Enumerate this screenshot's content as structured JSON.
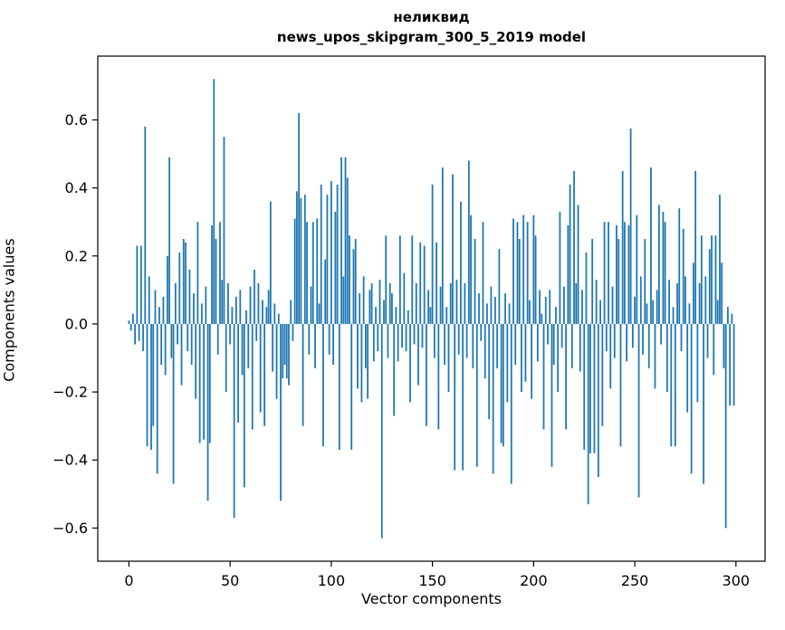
{
  "figure": {
    "title_line1": "неликвид",
    "title_line2": "news_upos_skipgram_300_5_2019 model",
    "xlabel": "Vector components",
    "ylabel": "Components values"
  },
  "chart_data": {
    "type": "bar",
    "title": "неликвид — news_upos_skipgram_300_5_2019 model",
    "xlabel": "Vector components",
    "ylabel": "Components values",
    "bar_color": "#1f77b4",
    "n_components": 300,
    "grid": false,
    "legend": null,
    "xlim": [
      -15.4,
      314.4
    ],
    "ylim": [
      -0.6975,
      0.7875
    ],
    "x_ticks": [
      0,
      50,
      100,
      150,
      200,
      250,
      300
    ],
    "x_tick_labels": [
      "0",
      "50",
      "100",
      "150",
      "200",
      "250",
      "300"
    ],
    "y_ticks": [
      -0.6,
      -0.4,
      -0.2,
      0.0,
      0.2,
      0.4,
      0.6
    ],
    "y_tick_labels": [
      "−0.6",
      "−0.4",
      "−0.2",
      "0.0",
      "0.2",
      "0.4",
      "0.6"
    ],
    "values": [
      0.01,
      -0.02,
      0.03,
      -0.06,
      0.23,
      -0.05,
      0.23,
      -0.08,
      0.58,
      -0.36,
      0.14,
      -0.37,
      -0.3,
      0.1,
      -0.44,
      0.05,
      -0.12,
      0.08,
      -0.15,
      0.2,
      0.49,
      -0.1,
      -0.47,
      0.12,
      -0.06,
      0.21,
      -0.18,
      0.25,
      0.24,
      -0.08,
      0.16,
      -0.12,
      0.09,
      -0.22,
      0.3,
      -0.35,
      0.06,
      -0.34,
      0.11,
      -0.52,
      -0.35,
      0.29,
      0.72,
      0.25,
      -0.09,
      0.3,
      0.13,
      0.55,
      -0.2,
      0.12,
      -0.06,
      0.05,
      -0.57,
      0.08,
      -0.29,
      0.1,
      -0.15,
      -0.48,
      0.04,
      -0.13,
      0.11,
      -0.31,
      0.16,
      -0.05,
      0.12,
      -0.26,
      0.07,
      -0.3,
      0.05,
      0.1,
      0.36,
      -0.14,
      0.06,
      -0.22,
      0.03,
      -0.52,
      -0.16,
      -0.12,
      -0.16,
      -0.18,
      0.07,
      -0.05,
      0.31,
      0.39,
      0.62,
      0.37,
      -0.3,
      0.38,
      0.3,
      -0.09,
      0.11,
      0.3,
      -0.13,
      0.31,
      0.06,
      0.41,
      -0.36,
      0.19,
      0.38,
      -0.09,
      0.42,
      -0.12,
      0.33,
      0.41,
      -0.37,
      0.49,
      0.14,
      0.49,
      0.43,
      0.26,
      -0.37,
      0.22,
      0.25,
      -0.19,
      0.09,
      -0.23,
      0.14,
      -0.13,
      -0.22,
      0.1,
      0.12,
      -0.11,
      0.05,
      -0.08,
      0.13,
      -0.63,
      0.07,
      0.26,
      -0.1,
      0.12,
      0.09,
      -0.27,
      0.05,
      -0.11,
      0.26,
      -0.07,
      0.15,
      -0.08,
      0.04,
      -0.23,
      0.26,
      -0.06,
      0.12,
      -0.18,
      0.24,
      -0.07,
      0.23,
      -0.3,
      0.1,
      0.05,
      0.41,
      -0.1,
      0.24,
      -0.31,
      0.11,
      0.46,
      -0.12,
      0.05,
      -0.2,
      0.12,
      0.44,
      -0.43,
      0.13,
      -0.09,
      0.36,
      -0.43,
      0.12,
      -0.1,
      0.48,
      0.32,
      -0.13,
      0.25,
      -0.42,
      0.09,
      -0.05,
      0.3,
      -0.16,
      0.06,
      -0.28,
      0.11,
      -0.44,
      0.08,
      -0.13,
      0.22,
      -0.35,
      -0.36,
      0.09,
      -0.23,
      0.06,
      -0.47,
      0.31,
      -0.12,
      0.3,
      0.25,
      -0.2,
      0.32,
      -0.17,
      0.3,
      0.07,
      -0.22,
      0.32,
      0.26,
      -0.11,
      0.1,
      0.03,
      -0.31,
      0.08,
      -0.06,
      0.1,
      -0.42,
      -0.12,
      0.05,
      -0.2,
      0.33,
      -0.07,
      0.11,
      -0.31,
      0.29,
      0.41,
      -0.13,
      0.45,
      0.12,
      0.35,
      -0.14,
      0.1,
      -0.37,
      0.21,
      -0.53,
      -0.38,
      0.25,
      -0.38,
      0.13,
      -0.45,
      0.07,
      -0.3,
      0.3,
      -0.08,
      0.3,
      -0.19,
      0.11,
      -0.1,
      0.29,
      0.25,
      -0.36,
      0.45,
      0.3,
      -0.11,
      0.29,
      0.575,
      -0.07,
      0.08,
      0.32,
      -0.51,
      0.14,
      -0.09,
      0.25,
      0.06,
      -0.13,
      0.46,
      0.07,
      -0.19,
      0.1,
      0.35,
      -0.06,
      0.33,
      0.3,
      -0.2,
      0.13,
      -0.36,
      0.05,
      -0.36,
      0.12,
      0.34,
      -0.08,
      0.28,
      0.14,
      -0.26,
      0.06,
      -0.44,
      0.18,
      0.45,
      -0.23,
      0.12,
      0.26,
      -0.47,
      0.14,
      -0.1,
      0.22,
      0.26,
      -0.15,
      0.26,
      0.07,
      0.38,
      0.18,
      -0.13,
      -0.6,
      0.05,
      -0.24,
      0.03,
      -0.24
    ]
  }
}
